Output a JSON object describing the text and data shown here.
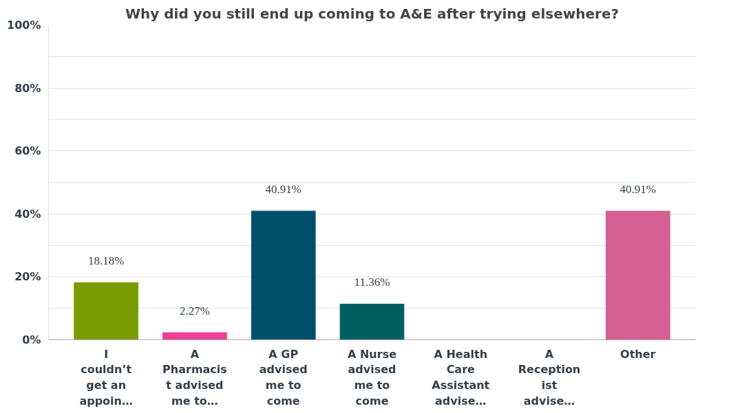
{
  "chart_data": {
    "type": "bar",
    "title": "Why did you still end up coming to A&E after trying elsewhere?",
    "categories": [
      "I\ncouldn’t\nget an\nappoin…",
      "A\nPharmacis\nt advised\nme to…",
      "A GP\nadvised\nme to\ncome",
      "A Nurse\nadvised\nme to\ncome",
      "A Health\nCare\nAssistant\nadvise…",
      "A\nReception\nist\nadvise…",
      "Other"
    ],
    "values": [
      18.18,
      2.27,
      40.91,
      11.36,
      0,
      0,
      40.91
    ],
    "colors": [
      "#7a9c01",
      "#ee3d96",
      "#004f6b",
      "#005e61",
      "#6a3d9a",
      "#f0a400",
      "#d55f92"
    ],
    "value_labels": [
      "18.18%",
      "2.27%",
      "40.91%",
      "11.36%",
      null,
      null,
      "40.91%"
    ],
    "ylim": [
      0,
      100
    ],
    "yticks": [
      {
        "value": 0,
        "label": "0%"
      },
      {
        "value": 10,
        "label": null
      },
      {
        "value": 20,
        "label": "20%"
      },
      {
        "value": 30,
        "label": null
      },
      {
        "value": 40,
        "label": "40%"
      },
      {
        "value": 50,
        "label": null
      },
      {
        "value": 60,
        "label": "60%"
      },
      {
        "value": 70,
        "label": null
      },
      {
        "value": 80,
        "label": "80%"
      },
      {
        "value": 90,
        "label": null
      },
      {
        "value": 100,
        "label": "100%"
      }
    ],
    "grid": "y"
  }
}
